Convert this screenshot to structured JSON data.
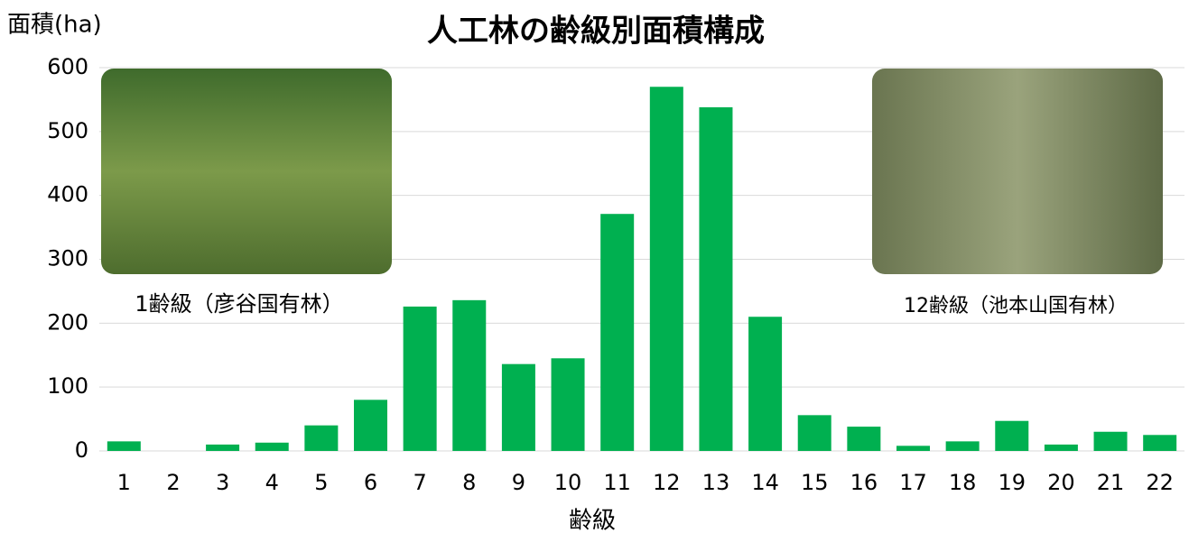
{
  "chart_data": {
    "type": "bar",
    "title": "人工林の齢級別面積構成",
    "y_label": "面積(ha)",
    "x_label": "齢級",
    "categories": [
      "1",
      "2",
      "3",
      "4",
      "5",
      "6",
      "7",
      "8",
      "9",
      "10",
      "11",
      "12",
      "13",
      "14",
      "15",
      "16",
      "17",
      "18",
      "19",
      "20",
      "21",
      "22"
    ],
    "values": [
      15,
      0,
      10,
      13,
      40,
      80,
      226,
      236,
      136,
      145,
      371,
      570,
      538,
      210,
      56,
      38,
      8,
      15,
      47,
      10,
      30,
      25
    ],
    "color": "#00b050",
    "ylim": [
      0,
      600
    ],
    "yticks": [
      0,
      100,
      200,
      300,
      400,
      500,
      600
    ],
    "grid": true,
    "annotations": [
      "1齢級（彦谷国有林）",
      "12齢級（池本山国有林）"
    ]
  }
}
